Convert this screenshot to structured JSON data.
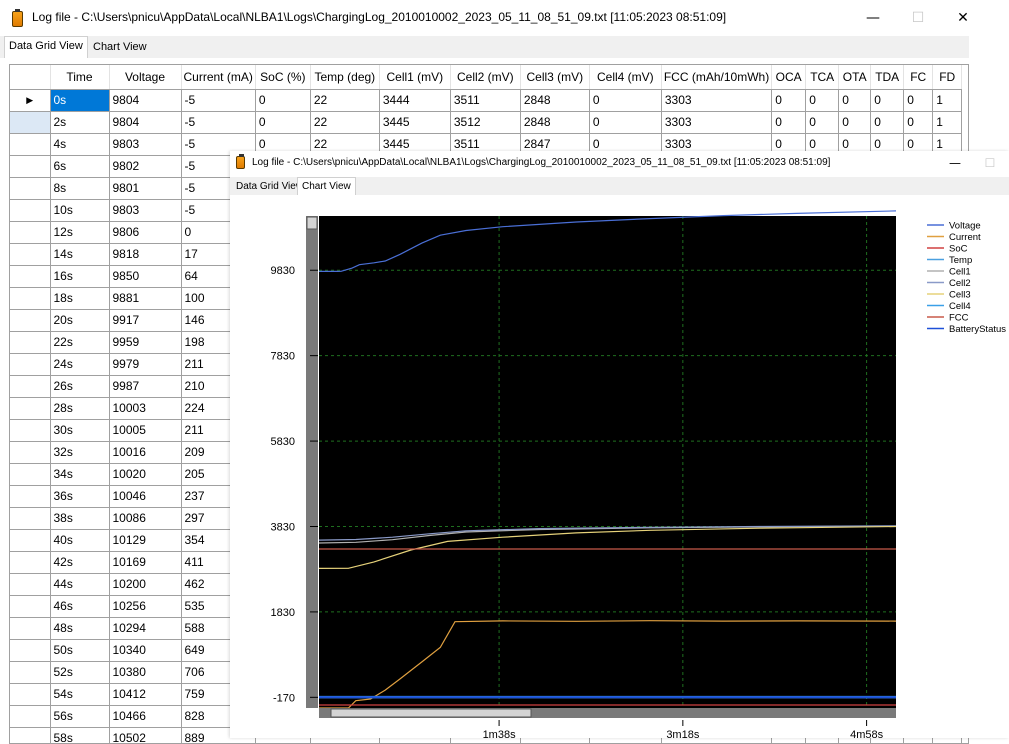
{
  "back_window": {
    "title": "Log file - C:\\Users\\pnicu\\AppData\\Local\\NLBA1\\Logs\\ChargingLog_2010010002_2023_05_11_08_51_09.txt [11:05:2023 08:51:09]",
    "controls": {
      "minimize": "—",
      "maximize": "☐",
      "close": "✕"
    },
    "tabs": [
      "Data Grid View",
      "Chart View"
    ],
    "active_tab": "Data Grid View"
  },
  "grid": {
    "columns": [
      "Time",
      "Voltage",
      "Current (mA)",
      "SoC (%)",
      "Temp (deg)",
      "Cell1 (mV)",
      "Cell2 (mV)",
      "Cell3 (mV)",
      "Cell4 (mV)",
      "FCC (mAh/10mWh)",
      "OCA",
      "TCA",
      "OTA",
      "TDA",
      "FC",
      "FD"
    ],
    "current_row_marker": "▶",
    "rows": [
      [
        "0s",
        "9804",
        "-5",
        "0",
        "22",
        "3444",
        "3511",
        "2848",
        "0",
        "3303",
        "0",
        "0",
        "0",
        "0",
        "0",
        "1"
      ],
      [
        "2s",
        "9804",
        "-5",
        "0",
        "22",
        "3445",
        "3512",
        "2848",
        "0",
        "3303",
        "0",
        "0",
        "0",
        "0",
        "0",
        "1"
      ],
      [
        "4s",
        "9803",
        "-5",
        "0",
        "22",
        "3445",
        "3511",
        "2847",
        "0",
        "3303",
        "0",
        "0",
        "0",
        "0",
        "0",
        "1"
      ],
      [
        "6s",
        "9802",
        "-5"
      ],
      [
        "8s",
        "9801",
        "-5"
      ],
      [
        "10s",
        "9803",
        "-5"
      ],
      [
        "12s",
        "9806",
        "0"
      ],
      [
        "14s",
        "9818",
        "17"
      ],
      [
        "16s",
        "9850",
        "64"
      ],
      [
        "18s",
        "9881",
        "100"
      ],
      [
        "20s",
        "9917",
        "146"
      ],
      [
        "22s",
        "9959",
        "198"
      ],
      [
        "24s",
        "9979",
        "211"
      ],
      [
        "26s",
        "9987",
        "210"
      ],
      [
        "28s",
        "10003",
        "224"
      ],
      [
        "30s",
        "10005",
        "211"
      ],
      [
        "32s",
        "10016",
        "209"
      ],
      [
        "34s",
        "10020",
        "205"
      ],
      [
        "36s",
        "10046",
        "237"
      ],
      [
        "38s",
        "10086",
        "297"
      ],
      [
        "40s",
        "10129",
        "354"
      ],
      [
        "42s",
        "10169",
        "411"
      ],
      [
        "44s",
        "10200",
        "462"
      ],
      [
        "46s",
        "10256",
        "535"
      ],
      [
        "48s",
        "10294",
        "588"
      ],
      [
        "50s",
        "10340",
        "649"
      ],
      [
        "52s",
        "10380",
        "706"
      ],
      [
        "54s",
        "10412",
        "759"
      ],
      [
        "56s",
        "10466",
        "828"
      ],
      [
        "58s",
        "10502",
        "889"
      ]
    ]
  },
  "front_window": {
    "title": "Log file - C:\\Users\\pnicu\\AppData\\Local\\NLBA1\\Logs\\ChargingLog_2010010002_2023_05_11_08_51_09.txt [11:05:2023 08:51:09]",
    "controls": {
      "minimize": "—",
      "maximize": "☐"
    },
    "tabs": [
      "Data Grid View",
      "Chart View"
    ],
    "active_tab": "Chart View"
  },
  "chart_data": {
    "type": "line",
    "background": "#000000",
    "grid": true,
    "grid_color": "#1f6f1f",
    "legend_placement": "right",
    "y_ticks": [
      9830,
      7830,
      5830,
      3830,
      1830,
      -170
    ],
    "ylim": [
      -420,
      11100
    ],
    "x_ticks": [
      "1m38s",
      "3m18s",
      "4m58s"
    ],
    "x_tick_values": [
      98,
      198,
      298
    ],
    "xlim": [
      0,
      314
    ],
    "series": [
      {
        "name": "Voltage",
        "color": "#4a6fd6",
        "points": [
          [
            0,
            9804
          ],
          [
            10,
            9803
          ],
          [
            12,
            9806
          ],
          [
            18,
            9881
          ],
          [
            22,
            9959
          ],
          [
            30,
            10005
          ],
          [
            36,
            10046
          ],
          [
            44,
            10200
          ],
          [
            56,
            10466
          ],
          [
            66,
            10650
          ],
          [
            80,
            10760
          ],
          [
            100,
            10850
          ],
          [
            140,
            10960
          ],
          [
            180,
            11040
          ],
          [
            220,
            11110
          ],
          [
            260,
            11160
          ],
          [
            314,
            11220
          ]
        ]
      },
      {
        "name": "Current",
        "color": "#e0a040",
        "points": [
          [
            0,
            -420
          ],
          [
            16,
            -420
          ],
          [
            20,
            -250
          ],
          [
            28,
            -210
          ],
          [
            36,
            0
          ],
          [
            44,
            260
          ],
          [
            56,
            660
          ],
          [
            66,
            1000
          ],
          [
            74,
            1600
          ],
          [
            100,
            1620
          ],
          [
            140,
            1610
          ],
          [
            180,
            1625
          ],
          [
            220,
            1615
          ],
          [
            260,
            1620
          ],
          [
            314,
            1615
          ]
        ]
      },
      {
        "name": "SoC",
        "color": "#d04040",
        "points": [
          [
            0,
            -350
          ],
          [
            314,
            -350
          ]
        ]
      },
      {
        "name": "Temp",
        "color": "#4aa0e0",
        "points": [
          [
            0,
            -180
          ],
          [
            314,
            -180
          ]
        ]
      },
      {
        "name": "Cell1",
        "color": "#b0b0b0",
        "points": [
          [
            0,
            3444
          ],
          [
            20,
            3460
          ],
          [
            40,
            3520
          ],
          [
            60,
            3620
          ],
          [
            80,
            3700
          ],
          [
            120,
            3760
          ],
          [
            180,
            3800
          ],
          [
            240,
            3820
          ],
          [
            314,
            3840
          ]
        ]
      },
      {
        "name": "Cell2",
        "color": "#8a9ac8",
        "points": [
          [
            0,
            3511
          ],
          [
            20,
            3525
          ],
          [
            40,
            3580
          ],
          [
            60,
            3660
          ],
          [
            80,
            3730
          ],
          [
            120,
            3780
          ],
          [
            180,
            3810
          ],
          [
            240,
            3830
          ],
          [
            314,
            3845
          ]
        ]
      },
      {
        "name": "Cell3",
        "color": "#e6d27a",
        "points": [
          [
            0,
            2848
          ],
          [
            16,
            2850
          ],
          [
            30,
            3000
          ],
          [
            50,
            3280
          ],
          [
            70,
            3480
          ],
          [
            100,
            3580
          ],
          [
            140,
            3680
          ],
          [
            180,
            3740
          ],
          [
            240,
            3790
          ],
          [
            314,
            3830
          ]
        ]
      },
      {
        "name": "Cell4",
        "color": "#3aa0e8",
        "points": [
          [
            0,
            -150
          ],
          [
            314,
            -150
          ]
        ]
      },
      {
        "name": "FCC",
        "color": "#c85a4a",
        "points": [
          [
            0,
            3303
          ],
          [
            314,
            3303
          ]
        ]
      },
      {
        "name": "BatteryStatus",
        "color": "#1e50d8",
        "points": [
          [
            0,
            -170
          ],
          [
            314,
            -170
          ]
        ]
      }
    ]
  }
}
